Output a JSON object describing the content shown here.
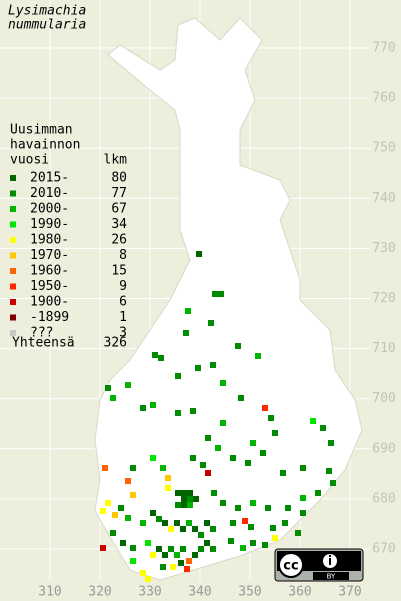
{
  "map": {
    "title_lines": [
      "Lysimachia",
      "nummularia"
    ],
    "legend": {
      "heading_lines": [
        "Uusimman",
        "havainnon",
        "vuosi"
      ],
      "count_heading": "lkm",
      "rows": [
        {
          "label": "2015-",
          "count": 80,
          "color": "#006400"
        },
        {
          "label": "2010-",
          "count": 77,
          "color": "#008c00"
        },
        {
          "label": "2000-",
          "count": 67,
          "color": "#00b400"
        },
        {
          "label": "1990-",
          "count": 34,
          "color": "#00e600"
        },
        {
          "label": "1980-",
          "count": 26,
          "color": "#ffff00"
        },
        {
          "label": "1970-",
          "count": 8,
          "color": "#ffc800"
        },
        {
          "label": "1960-",
          "count": 15,
          "color": "#ff6400"
        },
        {
          "label": "1950-",
          "count": 9,
          "color": "#ff2800"
        },
        {
          "label": "1900-",
          "count": 6,
          "color": "#c80000"
        },
        {
          "label": "-1899",
          "count": 1,
          "color": "#800000"
        },
        {
          "label": "???",
          "count": 3,
          "color": "#c8c8c8"
        }
      ],
      "total_label": "Yhteensä",
      "total": 326
    },
    "x_ticks": [
      310,
      320,
      330,
      340,
      350,
      360,
      370
    ],
    "y_ticks": [
      770,
      760,
      750,
      740,
      730,
      720,
      710,
      700,
      690,
      680,
      670
    ],
    "license": "BY"
  }
}
